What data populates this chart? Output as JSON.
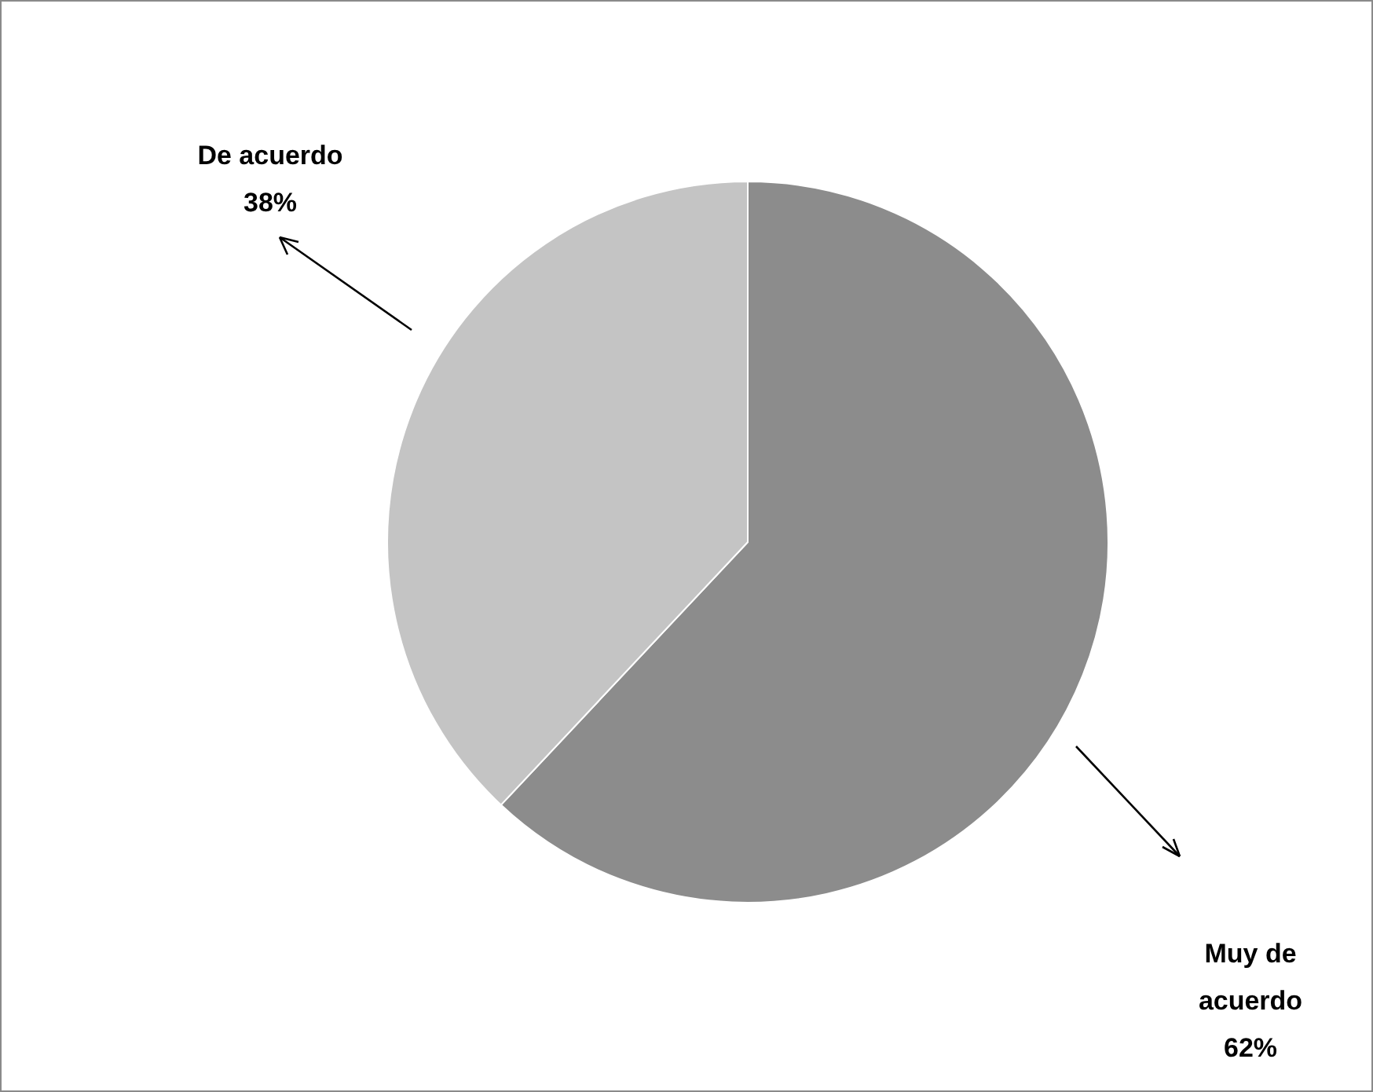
{
  "chart_data": {
    "type": "pie",
    "categories": [
      "Muy de acuerdo",
      "De acuerdo"
    ],
    "values": [
      62,
      38
    ],
    "value_labels": [
      "62%",
      "38%"
    ],
    "colors": [
      "#8c8c8c",
      "#c4c4c4"
    ],
    "legend": false
  }
}
